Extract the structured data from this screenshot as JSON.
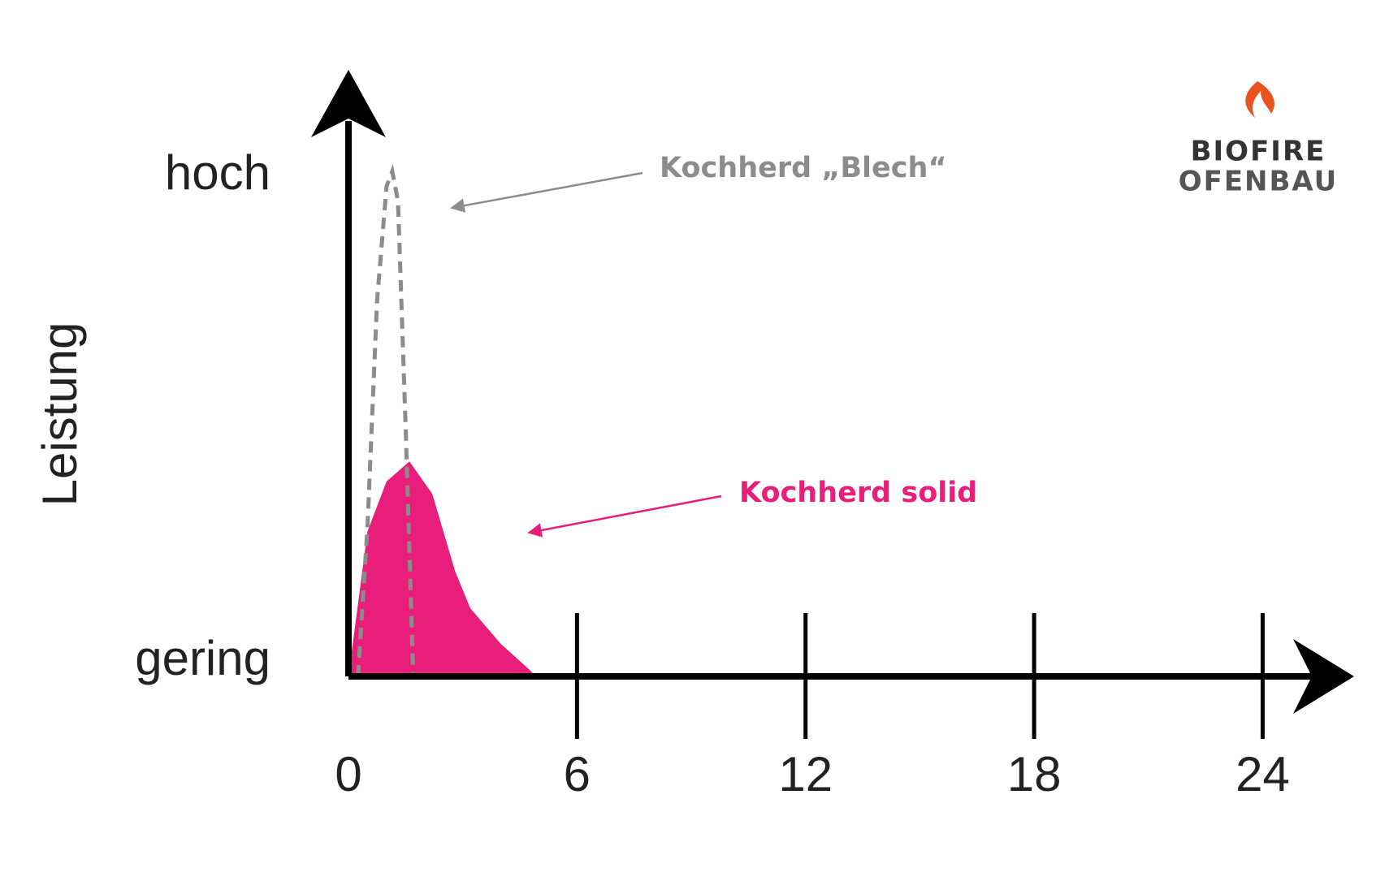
{
  "chart_data": {
    "type": "area",
    "y_label": "Leistung",
    "xlim": [
      0,
      26.4
    ],
    "xticks": [
      0,
      6,
      12,
      18,
      24
    ],
    "ylim": [
      0,
      120
    ],
    "yticks": [
      {
        "value": 0,
        "label": "gering"
      },
      {
        "value": 100,
        "label": "hoch"
      }
    ],
    "series": [
      {
        "name": "Kochherd „Blech“",
        "color": "#8c8c8c",
        "style": "dashed",
        "x": [
          0.25,
          0.5,
          0.75,
          1.0,
          1.15,
          1.3,
          1.5,
          1.7
        ],
        "values": [
          0,
          30,
          75,
          98,
          101,
          95,
          50,
          0
        ]
      },
      {
        "name": "Kochherd solid",
        "color": "#e91e7a",
        "style": "filled",
        "x": [
          0,
          0.5,
          1.0,
          1.6,
          2.2,
          2.8,
          3.2,
          4.0,
          4.8,
          4.9
        ],
        "values": [
          0,
          29,
          39,
          43,
          36.5,
          21,
          13.6,
          6.5,
          1,
          0
        ]
      }
    ],
    "logo": {
      "line1": "BIOFIRE",
      "line2": "OFENBAU"
    }
  }
}
